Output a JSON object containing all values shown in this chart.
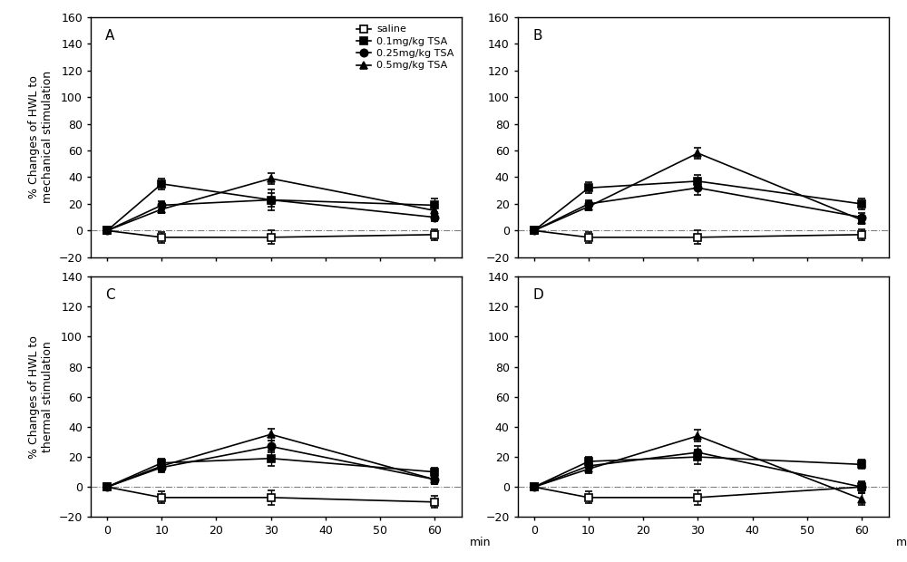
{
  "x": [
    0,
    10,
    30,
    60
  ],
  "panel_labels": [
    "A",
    "B",
    "C",
    "D"
  ],
  "legend_labels": [
    "saline",
    "0.1mg/kg TSA",
    "0.25mg/kg TSA",
    "0.5mg/kg TSA"
  ],
  "ylabel_top": "% Changes of HWL to\nmechanical stimulation",
  "ylabel_bottom": "% Changes of HWL to\nthermal stimulation",
  "xlabel": "min",
  "background_color": "#ffffff",
  "line_color": "#000000",
  "panels": {
    "A": {
      "ylim": [
        -20,
        160
      ],
      "yticks": [
        -20,
        0,
        20,
        40,
        60,
        80,
        100,
        120,
        140,
        160
      ],
      "series": {
        "saline": {
          "y": [
            0,
            -5,
            -5,
            -3
          ],
          "yerr": [
            1,
            4,
            5,
            4
          ]
        },
        "0.1mg/kg TSA": {
          "y": [
            0,
            35,
            23,
            19
          ],
          "yerr": [
            1,
            4,
            8,
            5
          ]
        },
        "0.25mg/kg TSA": {
          "y": [
            0,
            19,
            23,
            10
          ],
          "yerr": [
            1,
            3,
            5,
            3
          ]
        },
        "0.5mg/kg TSA": {
          "y": [
            0,
            16,
            39,
            15
          ],
          "yerr": [
            1,
            3,
            4,
            3
          ]
        }
      }
    },
    "B": {
      "ylim": [
        -20,
        160
      ],
      "yticks": [
        -20,
        0,
        20,
        40,
        60,
        80,
        100,
        120,
        140,
        160
      ],
      "series": {
        "saline": {
          "y": [
            0,
            -5,
            -5,
            -3
          ],
          "yerr": [
            1,
            4,
            5,
            4
          ]
        },
        "0.1mg/kg TSA": {
          "y": [
            0,
            32,
            37,
            20
          ],
          "yerr": [
            1,
            4,
            5,
            4
          ]
        },
        "0.25mg/kg TSA": {
          "y": [
            0,
            20,
            32,
            10
          ],
          "yerr": [
            1,
            3,
            5,
            3
          ]
        },
        "0.5mg/kg TSA": {
          "y": [
            0,
            18,
            58,
            8
          ],
          "yerr": [
            1,
            3,
            4,
            3
          ]
        }
      }
    },
    "C": {
      "ylim": [
        -20,
        140
      ],
      "yticks": [
        -20,
        0,
        20,
        40,
        60,
        80,
        100,
        120,
        140
      ],
      "series": {
        "saline": {
          "y": [
            0,
            -7,
            -7,
            -10
          ],
          "yerr": [
            1,
            4,
            5,
            4
          ]
        },
        "0.1mg/kg TSA": {
          "y": [
            0,
            16,
            19,
            10
          ],
          "yerr": [
            1,
            3,
            5,
            3
          ]
        },
        "0.25mg/kg TSA": {
          "y": [
            0,
            13,
            27,
            5
          ],
          "yerr": [
            1,
            3,
            4,
            3
          ]
        },
        "0.5mg/kg TSA": {
          "y": [
            0,
            14,
            35,
            5
          ],
          "yerr": [
            1,
            3,
            4,
            3
          ]
        }
      }
    },
    "D": {
      "ylim": [
        -20,
        140
      ],
      "yticks": [
        -20,
        0,
        20,
        40,
        60,
        80,
        100,
        120,
        140
      ],
      "series": {
        "saline": {
          "y": [
            0,
            -7,
            -7,
            0
          ],
          "yerr": [
            1,
            4,
            5,
            4
          ]
        },
        "0.1mg/kg TSA": {
          "y": [
            0,
            17,
            20,
            15
          ],
          "yerr": [
            1,
            3,
            5,
            3
          ]
        },
        "0.25mg/kg TSA": {
          "y": [
            0,
            14,
            23,
            0
          ],
          "yerr": [
            1,
            3,
            4,
            3
          ]
        },
        "0.5mg/kg TSA": {
          "y": [
            0,
            12,
            34,
            -8
          ],
          "yerr": [
            1,
            3,
            4,
            4
          ]
        }
      }
    }
  },
  "markers": {
    "saline": {
      "marker": "s",
      "fillstyle": "none",
      "ms": 6
    },
    "0.1mg/kg TSA": {
      "marker": "s",
      "fillstyle": "full",
      "ms": 6
    },
    "0.25mg/kg TSA": {
      "marker": "o",
      "fillstyle": "full",
      "ms": 6
    },
    "0.5mg/kg TSA": {
      "marker": "^",
      "fillstyle": "full",
      "ms": 6
    }
  }
}
